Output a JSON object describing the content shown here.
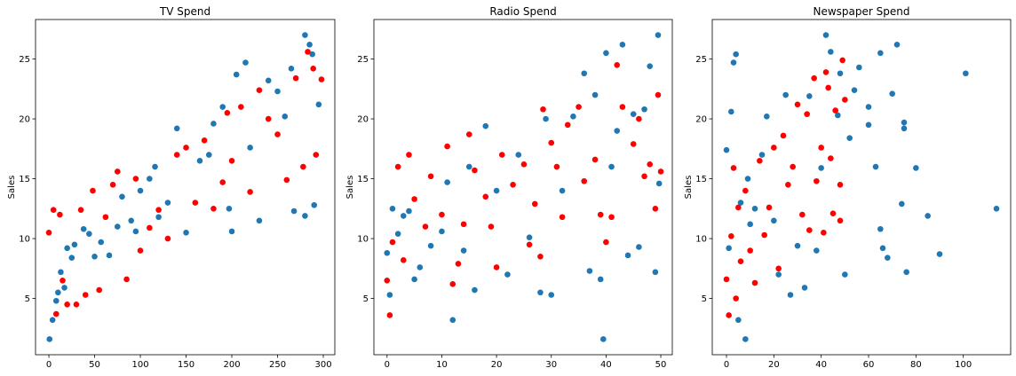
{
  "chart_data": [
    {
      "type": "scatter",
      "title": "TV Spend",
      "y_label": "Sales",
      "xlim": [
        -14.6,
        312.6
      ],
      "ylim": [
        0.3,
        28.3
      ],
      "xticks": [
        0,
        50,
        100,
        150,
        200,
        250,
        300
      ],
      "yticks": [
        5,
        10,
        15,
        20,
        25
      ],
      "series": [
        {
          "color": "#1f77b4",
          "x": [
            0.7,
            4,
            8,
            10,
            13,
            17,
            20,
            25,
            28,
            38,
            44,
            50,
            57,
            66,
            75,
            80,
            90,
            95,
            100,
            110,
            116,
            120,
            130,
            140,
            150,
            165,
            175,
            180,
            190,
            197,
            200,
            205,
            215,
            220,
            230,
            240,
            250,
            258,
            265,
            280,
            285,
            288,
            295,
            280,
            290,
            268
          ],
          "values": [
            1.6,
            3.2,
            4.8,
            5.5,
            7.2,
            5.9,
            9.2,
            8.4,
            9.5,
            10.8,
            10.4,
            8.5,
            9.7,
            8.6,
            11,
            13.5,
            11.5,
            10.6,
            14,
            15,
            16,
            11.8,
            13,
            19.2,
            10.5,
            16.5,
            17,
            19.6,
            21,
            12.5,
            10.6,
            23.7,
            24.7,
            17.6,
            11.5,
            23.2,
            22.3,
            20.2,
            24.2,
            27,
            26.2,
            25.4,
            21.2,
            11.9,
            12.8,
            12.3
          ]
        },
        {
          "color": "#ff0000",
          "x": [
            0,
            5,
            8,
            12,
            15,
            20,
            30,
            35,
            40,
            48,
            55,
            62,
            70,
            75,
            85,
            95,
            100,
            110,
            120,
            130,
            140,
            150,
            160,
            170,
            180,
            190,
            195,
            200,
            210,
            220,
            230,
            240,
            250,
            260,
            270,
            278,
            283,
            289,
            292,
            298
          ],
          "values": [
            10.5,
            12.4,
            3.7,
            12,
            6.5,
            4.5,
            4.5,
            12.4,
            5.3,
            14,
            5.7,
            11.8,
            14.5,
            15.6,
            6.6,
            15,
            9,
            10.9,
            12.4,
            10,
            17,
            17.6,
            13,
            18.2,
            12.5,
            14.7,
            20.5,
            16.5,
            21,
            13.9,
            22.4,
            20,
            18.7,
            14.9,
            23.4,
            16,
            25.6,
            24.2,
            17,
            23.3
          ]
        }
      ]
    },
    {
      "type": "scatter",
      "title": "Radio Spend",
      "y_label": "Sales",
      "xlim": [
        -2.4,
        52.1
      ],
      "ylim": [
        0.3,
        28.3
      ],
      "xticks": [
        0,
        10,
        20,
        30,
        40,
        50
      ],
      "yticks": [
        5,
        10,
        15,
        20,
        25
      ],
      "series": [
        {
          "color": "#1f77b4",
          "x": [
            0,
            0.5,
            1,
            2,
            3,
            4,
            5,
            6,
            8,
            10,
            11,
            12,
            14,
            15,
            16,
            18,
            20,
            22,
            24,
            26,
            28,
            29,
            30,
            32,
            34,
            36,
            37,
            38,
            39,
            39.5,
            40,
            41,
            42,
            43,
            44,
            45,
            46,
            48,
            49,
            49.5,
            49.7,
            47
          ],
          "values": [
            8.8,
            5.3,
            12.5,
            10.4,
            11.9,
            12.3,
            6.6,
            7.6,
            9.4,
            10.6,
            14.7,
            3.2,
            9,
            16,
            5.7,
            19.4,
            14,
            7,
            17,
            10.1,
            5.5,
            20,
            5.3,
            14,
            20.2,
            23.8,
            7.3,
            22,
            6.6,
            1.6,
            25.5,
            16,
            19,
            26.2,
            8.6,
            20.4,
            9.3,
            24.4,
            7.2,
            27,
            14.6,
            20.8
          ]
        },
        {
          "color": "#ff0000",
          "x": [
            0,
            0.5,
            1,
            2,
            3,
            4,
            5,
            7,
            8,
            10,
            11,
            12,
            13,
            14,
            15,
            16,
            18,
            19,
            20,
            21,
            23,
            25,
            26,
            27,
            28,
            28.5,
            30,
            31,
            32,
            33,
            35,
            36,
            38,
            39,
            40,
            41,
            42,
            43,
            45,
            46,
            47,
            48,
            49,
            49.5,
            50
          ],
          "values": [
            6.5,
            3.6,
            9.7,
            16,
            8.2,
            17,
            13.3,
            11,
            15.2,
            12,
            17.7,
            6.2,
            7.9,
            11.2,
            18.7,
            15.7,
            13.5,
            11,
            7.6,
            17,
            14.5,
            16.2,
            9.5,
            12.9,
            8.5,
            20.8,
            18,
            16,
            11.8,
            19.5,
            21,
            14.8,
            16.6,
            12,
            9.7,
            11.8,
            24.5,
            21,
            17.9,
            20,
            15.2,
            16.2,
            12.5,
            22,
            15.6
          ]
        }
      ]
    },
    {
      "type": "scatter",
      "title": "Newspaper Spend",
      "y_label": "Sales",
      "xlim": [
        -6,
        120
      ],
      "ylim": [
        0.3,
        28.3
      ],
      "xticks": [
        0,
        20,
        40,
        60,
        80,
        100
      ],
      "yticks": [
        5,
        10,
        15,
        20,
        25
      ],
      "series": [
        {
          "color": "#1f77b4",
          "x": [
            0,
            1,
            2,
            3,
            4,
            5,
            6,
            8,
            9,
            10,
            12,
            15,
            17,
            20,
            22,
            25,
            27,
            30,
            33,
            35,
            38,
            40,
            42,
            44,
            47,
            48,
            50,
            52,
            54,
            56,
            60,
            65,
            65,
            66,
            68,
            70,
            72,
            74,
            75,
            76,
            80,
            85,
            90,
            101,
            114,
            75,
            60,
            63
          ],
          "values": [
            17.4,
            9.2,
            20.6,
            24.7,
            25.4,
            3.2,
            13,
            1.6,
            15,
            11.2,
            12.5,
            17,
            20.2,
            11.5,
            7,
            22,
            5.3,
            9.4,
            5.9,
            21.9,
            9,
            15.9,
            27,
            25.6,
            20.3,
            23.8,
            7,
            18.4,
            22.4,
            24.3,
            21,
            25.5,
            10.8,
            9.2,
            8.4,
            22.1,
            26.2,
            12.9,
            19.7,
            7.2,
            15.9,
            11.9,
            8.7,
            23.8,
            12.5,
            19.2,
            19.5,
            16
          ]
        },
        {
          "color": "#ff0000",
          "x": [
            0,
            1,
            2,
            3,
            4,
            5,
            6,
            8,
            10,
            12,
            14,
            16,
            18,
            20,
            22,
            24,
            26,
            28,
            30,
            32,
            34,
            35,
            37,
            38,
            40,
            41,
            42,
            43,
            44,
            45,
            46,
            48,
            49,
            50,
            48
          ],
          "values": [
            6.6,
            3.6,
            10.2,
            15.9,
            5,
            12.6,
            8.1,
            14,
            9,
            6.3,
            16.5,
            10.3,
            12.6,
            17.6,
            7.5,
            18.6,
            14.5,
            16,
            21.2,
            12,
            20.4,
            10.7,
            23.4,
            14.8,
            17.6,
            10.5,
            23.9,
            22.6,
            16.7,
            12.1,
            20.7,
            14.5,
            24.9,
            21.6,
            11.5
          ]
        }
      ]
    }
  ]
}
